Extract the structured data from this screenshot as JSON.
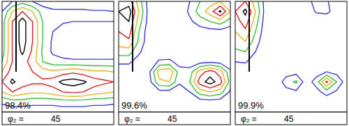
{
  "chart_data": [
    {
      "type": "contour",
      "tick_labels": false,
      "annotation": "98.4%",
      "phi_label": "φ₂ =",
      "phi2": 45,
      "levels": [
        1,
        2,
        3,
        4,
        5
      ],
      "colors": [
        "#3a3ad6",
        "#3cbf3c",
        "#e6b422",
        "#d42020",
        "#000000"
      ],
      "cells": [
        [
          0,
          1,
          1.5,
          1,
          0.5,
          0.3,
          0.2,
          0.2,
          0.2,
          0.2,
          0.2,
          0.2
        ],
        [
          1,
          3,
          4,
          3,
          1.5,
          1.2,
          1.2,
          1.2,
          1.2,
          1.1,
          1.1,
          1
        ],
        [
          1.5,
          4,
          5.5,
          4,
          2,
          1.2,
          1.1,
          1,
          1,
          1,
          1,
          1
        ],
        [
          1.5,
          4,
          5.5,
          4,
          2,
          1,
          0.6,
          0.5,
          0.5,
          0.5,
          0.5,
          0.5
        ],
        [
          1.5,
          4,
          5.5,
          4,
          2,
          0.8,
          0.5,
          0.4,
          0.4,
          0.4,
          0.4,
          0.4
        ],
        [
          1.5,
          4,
          5.2,
          3.8,
          1.8,
          0.8,
          0.5,
          0.4,
          0.4,
          0.4,
          0.4,
          0.4
        ],
        [
          2,
          4,
          4.5,
          3.5,
          2,
          1.5,
          1.3,
          1.2,
          1.2,
          1.2,
          1.2,
          1.2
        ],
        [
          3,
          4.5,
          4.5,
          4,
          3.5,
          3.2,
          3.5,
          3.8,
          3.5,
          3.2,
          3.2,
          3
        ],
        [
          4,
          5.2,
          4.5,
          4.2,
          4.2,
          4.5,
          5.3,
          5.5,
          5.2,
          4.5,
          4.2,
          4
        ],
        [
          3,
          4,
          3.5,
          3.2,
          3.2,
          3.5,
          4,
          4.2,
          4,
          3.5,
          3.3,
          3
        ],
        [
          1.2,
          1.5,
          1.5,
          1.3,
          1.3,
          1.3,
          1.5,
          1.5,
          1.5,
          1.3,
          1.3,
          1.2
        ],
        [
          0.3,
          0.4,
          0.4,
          0.4,
          0.4,
          0.4,
          0.4,
          0.4,
          0.4,
          0.4,
          0.4,
          0.3
        ]
      ]
    },
    {
      "type": "contour",
      "tick_labels": false,
      "annotation": "99.6%",
      "phi_label": "φ₂ =",
      "phi2": 45,
      "levels": [
        1,
        2,
        3,
        4,
        5
      ],
      "colors": [
        "#3a3ad6",
        "#3cbf3c",
        "#e6b422",
        "#d42020",
        "#000000"
      ],
      "cells": [
        [
          4,
          4.5,
          2.5,
          0.5,
          0.2,
          0.2,
          0.3,
          1,
          2,
          2.5,
          3,
          2.5
        ],
        [
          5,
          5.5,
          3,
          0.5,
          0.2,
          0.2,
          0.3,
          1.2,
          2.5,
          3.5,
          5.2,
          3
        ],
        [
          4.5,
          5,
          2.5,
          0.5,
          0.2,
          0.2,
          0.2,
          0.8,
          1.5,
          2,
          2.5,
          1.5
        ],
        [
          4,
          4.5,
          2,
          0.3,
          0.1,
          0.1,
          0.1,
          0.3,
          0.5,
          0.6,
          0.6,
          0.5
        ],
        [
          3.5,
          3.8,
          1.8,
          0.3,
          0.1,
          0.1,
          0.1,
          0.1,
          0.1,
          0.1,
          0.1,
          0.1
        ],
        [
          2.5,
          2.5,
          1.2,
          0.2,
          0.1,
          0.1,
          0.1,
          0.1,
          0.1,
          0.1,
          0.1,
          0.1
        ],
        [
          1.2,
          1.2,
          0.5,
          0.2,
          1.2,
          1.3,
          0.5,
          0.3,
          0.6,
          0.8,
          0.6,
          0.3
        ],
        [
          0.3,
          0.3,
          0.2,
          0.8,
          3.5,
          3.8,
          1.5,
          1.5,
          3.5,
          4.5,
          3.5,
          1.2
        ],
        [
          0.2,
          0.2,
          0.2,
          0.6,
          2.8,
          3,
          1.2,
          2,
          4.5,
          5.5,
          4.5,
          1.5
        ],
        [
          0.1,
          0.1,
          0.1,
          0.2,
          0.6,
          0.6,
          0.3,
          1,
          2.5,
          3,
          2.5,
          0.8
        ],
        [
          0.1,
          0.1,
          0.1,
          0.1,
          0.1,
          0.1,
          0.1,
          0.2,
          0.4,
          0.5,
          0.4,
          0.2
        ],
        [
          0.1,
          0.1,
          0.1,
          0.1,
          0.1,
          0.1,
          0.1,
          0.1,
          0.1,
          0.1,
          0.1,
          0.1
        ]
      ]
    },
    {
      "type": "contour",
      "tick_labels": false,
      "annotation": "99.9%",
      "phi_label": "φ₂ =",
      "phi2": 45,
      "levels": [
        1,
        2,
        3,
        4,
        5
      ],
      "colors": [
        "#3a3ad6",
        "#3cbf3c",
        "#e6b422",
        "#d42020",
        "#000000"
      ],
      "cells": [
        [
          3,
          4,
          2.5,
          0.5,
          0.2,
          0.2,
          0.2,
          0.8,
          1.2,
          1.1,
          0.5,
          0.2
        ],
        [
          4,
          5.3,
          3,
          0.5,
          0.2,
          0.2,
          0.2,
          0.5,
          1.1,
          1.2,
          0.6,
          0.2
        ],
        [
          3.5,
          4.5,
          2.5,
          0.4,
          0.1,
          0.1,
          0.1,
          0.2,
          0.4,
          0.4,
          0.2,
          0.1
        ],
        [
          3,
          3.8,
          2,
          0.3,
          0.1,
          0.1,
          0.1,
          0.1,
          0.1,
          0.1,
          0.1,
          0.1
        ],
        [
          2.5,
          3,
          1.5,
          0.2,
          0.1,
          0.1,
          0.1,
          0.1,
          0.1,
          0.1,
          0.1,
          0.1
        ],
        [
          1.8,
          2,
          1,
          0.1,
          0.1,
          0.1,
          0.1,
          0.1,
          0.1,
          0.1,
          0.1,
          0.1
        ],
        [
          1,
          1.1,
          0.5,
          0.1,
          0.1,
          0.1,
          0.1,
          0.1,
          0.1,
          0.1,
          0.1,
          0.1
        ],
        [
          0.3,
          0.3,
          0.2,
          0.1,
          0.1,
          0.5,
          0.6,
          0.2,
          0.5,
          1,
          0.6,
          0.1
        ],
        [
          0.1,
          0.1,
          0.1,
          0.1,
          0.2,
          1.5,
          2.2,
          0.4,
          1.5,
          4.2,
          2,
          0.3
        ],
        [
          0.1,
          0.1,
          0.1,
          0.1,
          0.1,
          0.6,
          0.8,
          0.2,
          0.6,
          1.5,
          0.8,
          0.1
        ],
        [
          0.1,
          0.1,
          0.1,
          0.1,
          0.1,
          0.1,
          0.1,
          0.1,
          0.1,
          0.1,
          0.1,
          0.1
        ],
        [
          0.1,
          0.1,
          0.1,
          0.1,
          0.1,
          0.1,
          0.1,
          0.1,
          0.1,
          0.1,
          0.1,
          0.1
        ]
      ]
    }
  ]
}
